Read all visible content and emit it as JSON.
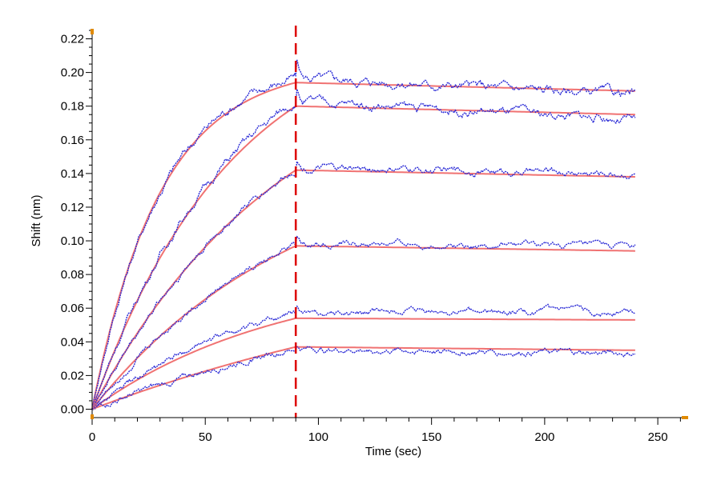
{
  "chart_data": {
    "type": "line",
    "title": "",
    "xlabel": "Time (sec)",
    "ylabel": "Shift (nm)",
    "xlim": [
      0,
      262
    ],
    "ylim": [
      -0.005,
      0.225
    ],
    "x_ticks": [
      0,
      50,
      100,
      150,
      200,
      250
    ],
    "x_tick_labels": [
      "0",
      "50",
      "100",
      "150",
      "200",
      "250"
    ],
    "x_minor_step": 10,
    "y_ticks": [
      0.0,
      0.02,
      0.04,
      0.06,
      0.08,
      0.1,
      0.12,
      0.14,
      0.16,
      0.18,
      0.2,
      0.22
    ],
    "y_tick_labels": [
      "0.00",
      "0.02",
      "0.04",
      "0.06",
      "0.08",
      "0.10",
      "0.12",
      "0.14",
      "0.16",
      "0.18",
      "0.20",
      "0.22"
    ],
    "y_minor_step": 0.005,
    "grid": false,
    "legend": "none",
    "vertical_marker": {
      "x": 90,
      "style": "dashed",
      "color": "#dd0000"
    },
    "colors": {
      "measured": "#2b2bd6",
      "fit": "#f07272",
      "axis_end_markers": "#e08a00"
    },
    "association_end": 90,
    "end_time": 240,
    "series": [
      {
        "role": "fit",
        "plateau": 0.194,
        "kobs": 0.033,
        "dissociation_end": 0.189
      },
      {
        "role": "measured",
        "plateau": 0.197,
        "kobs": 0.032,
        "dissociation_end": 0.187
      },
      {
        "role": "fit",
        "plateau": 0.18,
        "kobs": 0.016,
        "dissociation_end": 0.175
      },
      {
        "role": "measured",
        "plateau": 0.183,
        "kobs": 0.016,
        "dissociation_end": 0.172
      },
      {
        "role": "fit",
        "plateau": 0.142,
        "kobs": 0.0115,
        "dissociation_end": 0.138
      },
      {
        "role": "measured",
        "plateau": 0.143,
        "kobs": 0.0115,
        "dissociation_end": 0.14
      },
      {
        "role": "fit",
        "plateau": 0.097,
        "kobs": 0.011,
        "dissociation_end": 0.094
      },
      {
        "role": "measured",
        "plateau": 0.098,
        "kobs": 0.011,
        "dissociation_end": 0.097
      },
      {
        "role": "fit",
        "plateau": 0.054,
        "kobs": 0.012,
        "dissociation_end": 0.053
      },
      {
        "role": "measured",
        "plateau": 0.057,
        "kobs": 0.012,
        "dissociation_end": 0.058
      },
      {
        "role": "fit",
        "plateau": 0.037,
        "kobs": 0.005,
        "dissociation_end": 0.035
      },
      {
        "role": "measured",
        "plateau": 0.036,
        "kobs": 0.006,
        "dissociation_end": 0.033
      }
    ]
  }
}
